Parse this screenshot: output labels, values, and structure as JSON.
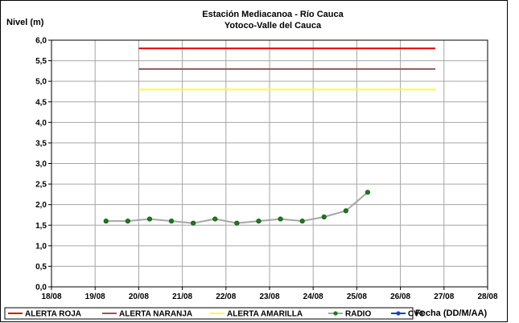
{
  "chart_data": {
    "type": "line",
    "title": "Estación Mediacanoa - Río Cauca",
    "subtitle": "Yotoco-Valle del Cauca",
    "ylabel": "Nivel (m)",
    "xlabel": "Fecha (DD/M/AA)",
    "ylim": [
      0,
      6
    ],
    "yticks": [
      "0,0",
      "0,5",
      "1,0",
      "1,5",
      "2,0",
      "2,5",
      "3,0",
      "3,5",
      "4,0",
      "4,5",
      "5,0",
      "5,5",
      "6,0"
    ],
    "xlim": [
      0,
      10
    ],
    "xticks": [
      "18/08",
      "19/08",
      "20/08",
      "21/08",
      "22/08",
      "23/08",
      "24/08",
      "25/08",
      "26/08",
      "27/08",
      "28/08"
    ],
    "grid": true,
    "legend_position": "bottom",
    "series": [
      {
        "name": "ALERTA ROJA",
        "color": "#e00000",
        "marker": "none",
        "x": [
          2.0,
          8.8
        ],
        "y": [
          5.8,
          5.8
        ]
      },
      {
        "name": "ALERTA NARANJA",
        "color": "#8c5a5a",
        "marker": "none",
        "x": [
          2.0,
          8.8
        ],
        "y": [
          5.3,
          5.3
        ]
      },
      {
        "name": "ALERTA AMARILLA",
        "color": "#ffff33",
        "marker": "none",
        "x": [
          2.0,
          8.8
        ],
        "y": [
          4.8,
          4.8
        ]
      },
      {
        "name": "RADIO",
        "color": "#a6a6a6",
        "marker_color": "#1a7a1a",
        "marker": "circle",
        "x": [
          1.25,
          1.75,
          2.25,
          2.75,
          3.25,
          3.75,
          4.25,
          4.75,
          5.25,
          5.75,
          6.25,
          6.75,
          7.25
        ],
        "y": [
          1.6,
          1.6,
          1.65,
          1.6,
          1.55,
          1.65,
          1.55,
          1.6,
          1.65,
          1.6,
          1.7,
          1.85,
          2.3
        ]
      },
      {
        "name": "CVC",
        "color": "#1f3fbf",
        "marker": "circle",
        "x": [],
        "y": []
      }
    ]
  }
}
